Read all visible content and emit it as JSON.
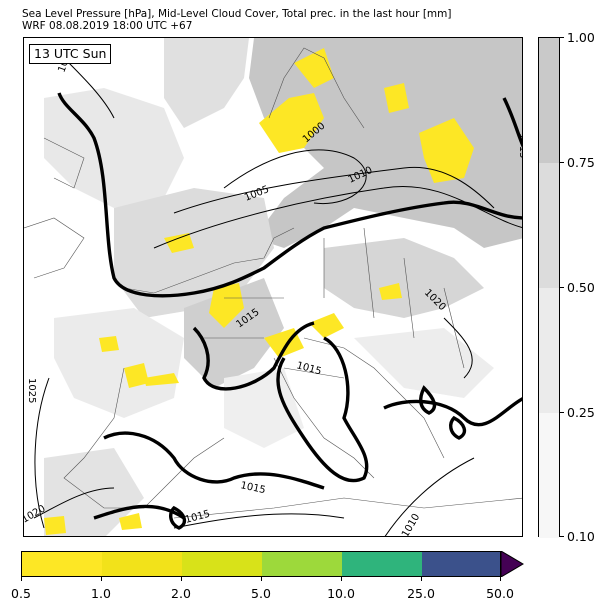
{
  "title": {
    "line1": "Sea Level Pressure [hPa], Mid-Level Cloud Cover, Total prec. in the last hour [mm]",
    "line2": "WRF 08.08.2019 18:00 UTC +67"
  },
  "map": {
    "time_label": "13 UTC Sun",
    "isobar_labels": [
      "1000",
      "1005",
      "1010",
      "1010",
      "1015",
      "1015",
      "1015",
      "1015",
      "1015",
      "1015",
      "1015",
      "1020",
      "1020",
      "1025"
    ]
  },
  "cloud_colorbar": {
    "ticks": [
      "0.10",
      "0.25",
      "0.50",
      "0.75",
      "1.00"
    ],
    "colors": [
      "#f7f7f7",
      "#ebebeb",
      "#dcdcdc",
      "#c9c9c9"
    ]
  },
  "precip_colorbar": {
    "ticks": [
      "0.5",
      "1.0",
      "2.0",
      "5.0",
      "10.0",
      "25.0",
      "50.0"
    ],
    "colors": [
      "#fde725",
      "#f2e21a",
      "#d8e219",
      "#9dd93b",
      "#2fb47c",
      "#3b518b"
    ],
    "extend_color": "#440154"
  },
  "colors": {
    "sea": "#ffffff",
    "cloud_light": "#e6e6e6",
    "cloud_dark": "#c4c4c4",
    "precip": "#fde725",
    "isobar": "#000000"
  }
}
